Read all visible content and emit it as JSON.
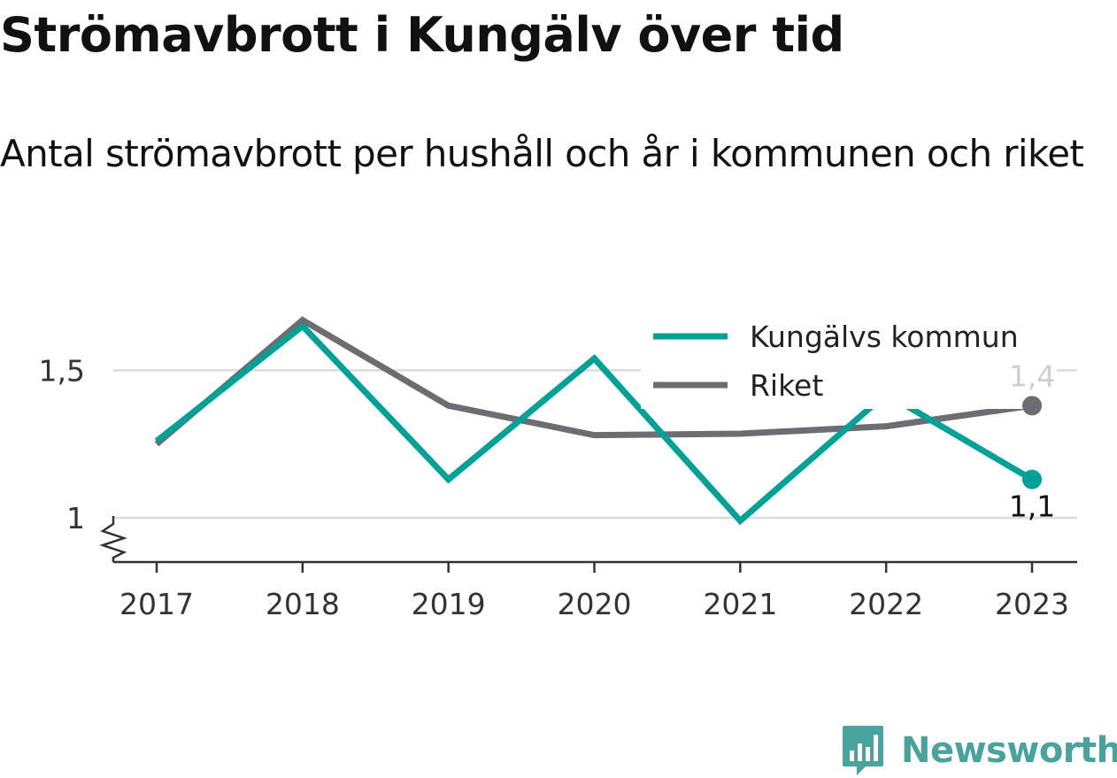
{
  "header": {
    "title": "Strömavbrott i Kungälv över tid",
    "subtitle": "Antal strömavbrott per hushåll och år i kommunen och riket"
  },
  "chart_data": {
    "type": "line",
    "x": [
      2017,
      2018,
      2019,
      2020,
      2021,
      2022,
      2023
    ],
    "x_tick_labels": [
      "2017",
      "2018",
      "2019",
      "2020",
      "2021",
      "2022",
      "2023"
    ],
    "y_ticks": [
      1,
      1.5
    ],
    "y_tick_labels": [
      "1",
      "1,5"
    ],
    "ylim": [
      0.85,
      1.75
    ],
    "y_axis_break": true,
    "grid": true,
    "legend_position": "top-right",
    "series": [
      {
        "name": "Kungälvs kommun",
        "color": "#00a197",
        "values": [
          1.26,
          1.65,
          1.13,
          1.54,
          0.99,
          1.42,
          1.13
        ],
        "end_label": "1,1"
      },
      {
        "name": "Riket",
        "color": "#6d6c71",
        "values": [
          1.25,
          1.67,
          1.38,
          1.28,
          1.285,
          1.31,
          1.38
        ],
        "end_label": "1,4"
      }
    ]
  },
  "branding": {
    "logo_icon": "newsworthy-chart-bubble-icon",
    "name": "Newsworthy",
    "color": "#47a39b"
  }
}
